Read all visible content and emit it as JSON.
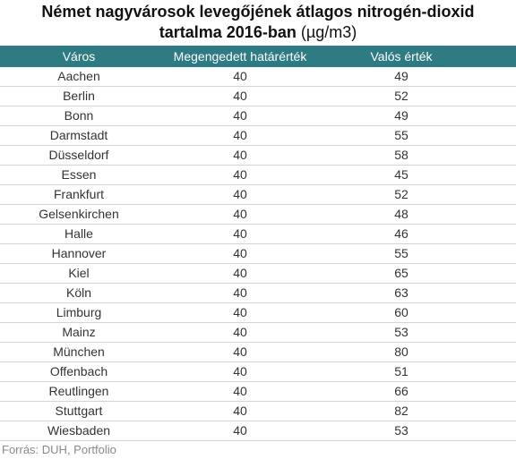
{
  "title": {
    "line1": "Német nagyvárosok levegőjének átlagos nitrogén-dioxid",
    "line2_bold": "tartalma 2016-ban",
    "unit": "(µg/m3)"
  },
  "table": {
    "headers": [
      "Város",
      "Megengedett határérték",
      "Valós érték"
    ],
    "rows": [
      [
        "Aachen",
        "40",
        "49"
      ],
      [
        "Berlin",
        "40",
        "52"
      ],
      [
        "Bonn",
        "40",
        "49"
      ],
      [
        "Darmstadt",
        "40",
        "55"
      ],
      [
        "Düsseldorf",
        "40",
        "58"
      ],
      [
        "Essen",
        "40",
        "45"
      ],
      [
        "Frankfurt",
        "40",
        "52"
      ],
      [
        "Gelsenkirchen",
        "40",
        "48"
      ],
      [
        "Halle",
        "40",
        "46"
      ],
      [
        "Hannover",
        "40",
        "55"
      ],
      [
        "Kiel",
        "40",
        "65"
      ],
      [
        "Köln",
        "40",
        "63"
      ],
      [
        "Limburg",
        "40",
        "60"
      ],
      [
        "Mainz",
        "40",
        "53"
      ],
      [
        "München",
        "40",
        "80"
      ],
      [
        "Offenbach",
        "40",
        "51"
      ],
      [
        "Reutlingen",
        "40",
        "66"
      ],
      [
        "Stuttgart",
        "40",
        "82"
      ],
      [
        "Wiesbaden",
        "40",
        "53"
      ]
    ]
  },
  "source": "Forrás: DUH, Portfolio",
  "colors": {
    "header_bg": "#2f7b84",
    "header_text": "#ffffff",
    "row_border": "#d4d4d4"
  },
  "chart_data": {
    "type": "table",
    "title": "Német nagyvárosok levegőjének átlagos nitrogén-dioxid tartalma 2016-ban (µg/m3)",
    "columns": [
      "Város",
      "Megengedett határérték",
      "Valós érték"
    ],
    "categories": [
      "Aachen",
      "Berlin",
      "Bonn",
      "Darmstadt",
      "Düsseldorf",
      "Essen",
      "Frankfurt",
      "Gelsenkirchen",
      "Halle",
      "Hannover",
      "Kiel",
      "Köln",
      "Limburg",
      "Mainz",
      "München",
      "Offenbach",
      "Reutlingen",
      "Stuttgart",
      "Wiesbaden"
    ],
    "series": [
      {
        "name": "Megengedett határérték",
        "values": [
          40,
          40,
          40,
          40,
          40,
          40,
          40,
          40,
          40,
          40,
          40,
          40,
          40,
          40,
          40,
          40,
          40,
          40,
          40
        ]
      },
      {
        "name": "Valós érték",
        "values": [
          49,
          52,
          49,
          55,
          58,
          45,
          52,
          48,
          46,
          55,
          65,
          63,
          60,
          53,
          80,
          51,
          66,
          82,
          53
        ]
      }
    ]
  }
}
